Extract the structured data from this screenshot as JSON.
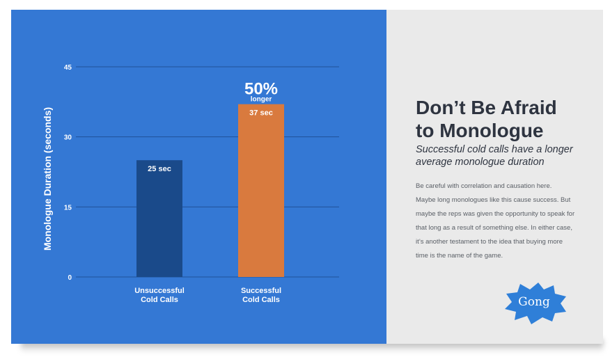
{
  "chart_data": {
    "type": "bar",
    "categories": [
      "Unsuccessful Cold Calls",
      "Successful Cold Calls"
    ],
    "category_lines": [
      [
        "Unsuccessful",
        "Cold Calls"
      ],
      [
        "Successful",
        "Cold Calls"
      ]
    ],
    "values": [
      25,
      37
    ],
    "value_labels": [
      "25 sec",
      "37 sec"
    ],
    "bar_colors": [
      "#1a4a8a",
      "#d97a3e"
    ],
    "title": "",
    "xlabel": "",
    "ylabel": "Monologue Duration (seconds)",
    "ylim": [
      0,
      45
    ],
    "yticks": [
      0,
      15,
      30,
      45
    ],
    "grid": true,
    "annotation": {
      "big": "50%",
      "small": "longer",
      "category_index": 1
    }
  },
  "panel": {
    "heading_line1": "Don’t Be Afraid",
    "heading_line2": "to Monologue",
    "subheading_line1": "Successful cold calls have a longer",
    "subheading_line2": "average monologue duration",
    "body_lines": [
      "Be careful with correlation and causation here.",
      "Maybe long monologues like this cause success. But",
      "maybe the reps was given the opportunity to speak for",
      "that long as a result of something else. In either case,",
      "it’s another testament to the idea that buying more",
      "time is the name of the game."
    ],
    "logo_text": "Gong"
  },
  "colors": {
    "left_bg": "#3478d4",
    "right_bg": "#eaeaea",
    "grid_line": "#1f5299",
    "text_dark": "#2e3440"
  }
}
